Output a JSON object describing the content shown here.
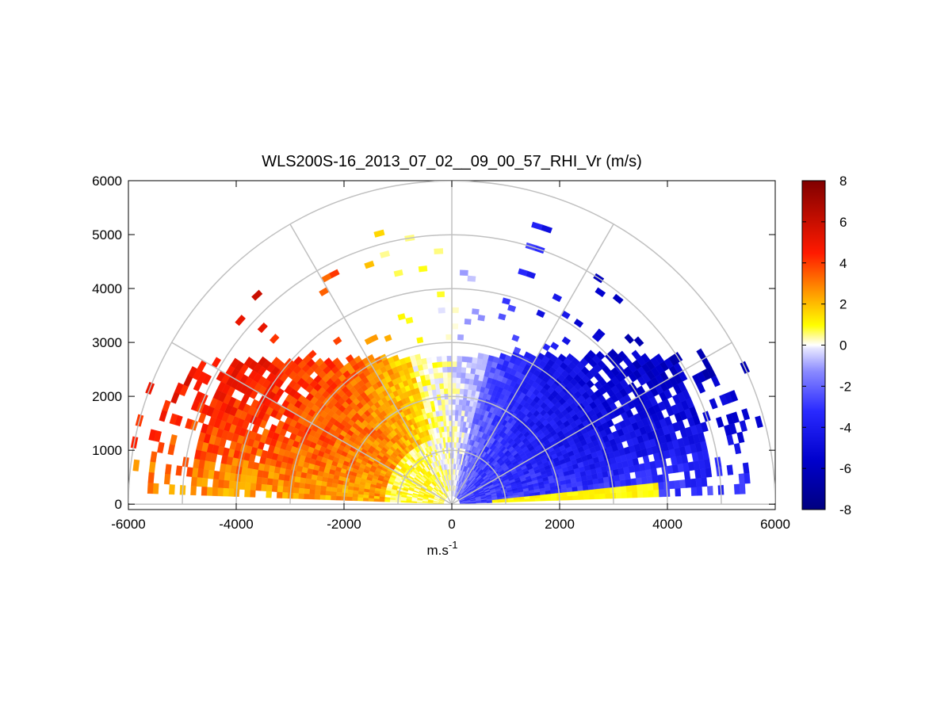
{
  "chart_data": {
    "type": "heatmap",
    "subtype": "polar-rhi-scan",
    "title": "WLS200S-16_2013_07_02__09_00_57_RHI_Vr (m/s)",
    "xlabel": "m.s",
    "xlabel_superscript": "-1",
    "ylabel": "",
    "xlim": [
      -6000,
      6000
    ],
    "ylim": [
      -100,
      6000
    ],
    "x_ticks": [
      -6000,
      -4000,
      -2000,
      0,
      2000,
      4000,
      6000
    ],
    "y_ticks": [
      0,
      1000,
      2000,
      3000,
      4000,
      5000,
      6000
    ],
    "x_tick_labels": [
      "-6000",
      "-4000",
      "-2000",
      "0",
      "2000",
      "4000",
      "6000"
    ],
    "y_tick_labels": [
      "0",
      "1000",
      "2000",
      "3000",
      "4000",
      "5000",
      "6000"
    ],
    "grid": true,
    "polar_grid": {
      "range_rings_m": [
        1000,
        2000,
        3000,
        4000,
        5000,
        6000
      ],
      "spokes_deg": [
        0,
        30,
        60,
        90,
        120,
        150,
        180
      ]
    },
    "colorbar": {
      "min": -8,
      "max": 8,
      "ticks": [
        -8,
        -6,
        -4,
        -2,
        0,
        2,
        4,
        6,
        8
      ],
      "tick_labels": [
        "-8",
        "-6",
        "-4",
        "-2",
        "0",
        "2",
        "4",
        "6",
        "8"
      ],
      "colormap": "blue-white-yellow-red"
    },
    "scan": {
      "sector_deg": [
        2,
        178
      ],
      "range_m": [
        150,
        6000
      ],
      "dominant_pattern": "positive radial velocity (toward left/west side, up to ~6 m/s) and negative (toward right/east side, down to ~-6 m/s); sparse returns beyond ~3000 m altitude"
    },
    "colors": {
      "axis": "#000000",
      "grid": "#c0c0c0",
      "background": "#ffffff"
    }
  }
}
